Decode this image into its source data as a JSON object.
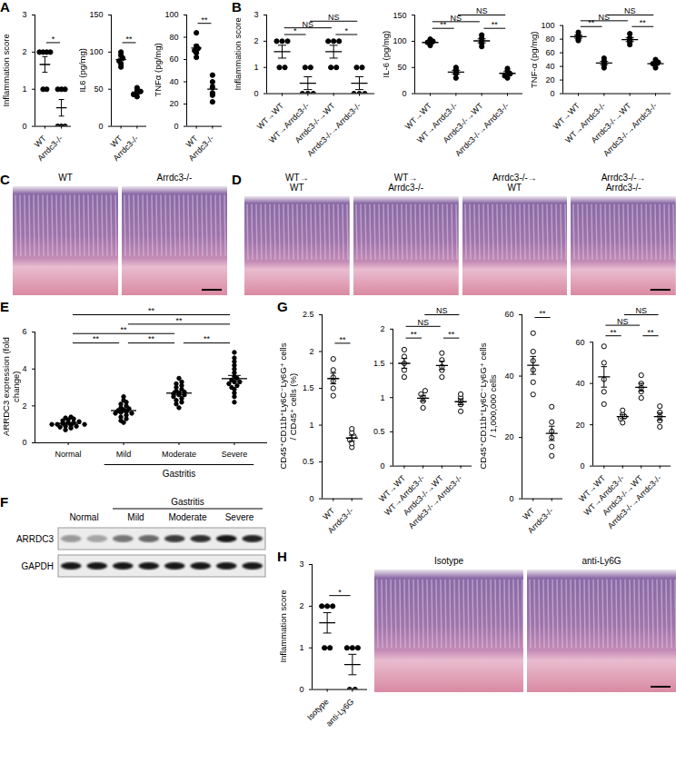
{
  "chart_data": [
    {
      "type": "scatter",
      "panel": "A",
      "y_label": "Inflammation score",
      "categories": [
        "WT",
        "Arrdc3-/-"
      ],
      "values": [
        [
          2,
          2,
          2,
          2,
          1,
          1
        ],
        [
          1,
          1,
          1,
          0,
          0,
          0
        ]
      ],
      "ylim": [
        0,
        3
      ],
      "yticks": [
        0,
        1,
        2,
        3
      ],
      "marker": "circle",
      "color": "#000000",
      "comparisons": [
        {
          "groups": [
            0,
            1
          ],
          "label": "*"
        }
      ]
    },
    {
      "type": "scatter",
      "y_label": "IL6 (pg/mg)",
      "categories": [
        "WT",
        "Arrdc3-/-"
      ],
      "values": [
        [
          80,
          84,
          88,
          92,
          96,
          100
        ],
        [
          40,
          43,
          45,
          47,
          49,
          52
        ]
      ],
      "ylim": [
        0,
        150
      ],
      "yticks": [
        0,
        50,
        100,
        150
      ],
      "marker": "circle",
      "color": "#000000",
      "comparisons": [
        {
          "groups": [
            0,
            1
          ],
          "label": "**"
        }
      ]
    },
    {
      "type": "scatter",
      "y_label": "TNFα (pg/mg)",
      "categories": [
        "WT",
        "Arrdc3-/-"
      ],
      "values": [
        [
          62,
          66,
          68,
          70,
          72,
          84
        ],
        [
          22,
          28,
          30,
          35,
          40,
          46
        ]
      ],
      "ylim": [
        0,
        100
      ],
      "yticks": [
        0,
        20,
        40,
        60,
        80,
        100
      ],
      "marker": "circle",
      "color": "#000000",
      "comparisons": [
        {
          "groups": [
            0,
            1
          ],
          "label": "**"
        }
      ]
    },
    {
      "type": "scatter",
      "panel": "B",
      "y_label": "Inflammation score",
      "categories": [
        "WT→WT",
        "WT→Arrdc3-/-",
        "Arrdc3-/-→WT",
        "Arrdc3-/-→Arrdc3-/-"
      ],
      "values": [
        [
          2,
          2,
          2,
          1,
          1
        ],
        [
          1,
          1,
          0,
          0,
          0
        ],
        [
          2,
          2,
          2,
          1,
          1
        ],
        [
          1,
          1,
          0,
          0,
          0
        ]
      ],
      "ylim": [
        0,
        3
      ],
      "yticks": [
        0,
        1,
        2,
        3
      ],
      "marker": "circle",
      "color": "#000000",
      "comparisons": [
        {
          "groups": [
            0,
            1
          ],
          "label": "*"
        },
        {
          "groups": [
            2,
            3
          ],
          "label": "*"
        },
        {
          "groups": [
            0,
            2
          ],
          "label": "NS"
        },
        {
          "groups": [
            1,
            3
          ],
          "label": "NS"
        }
      ]
    },
    {
      "type": "scatter",
      "y_label": "IL-6 (pg/mg)",
      "categories": [
        "WT→WT",
        "WT→Arrdc3-/-",
        "Arrdc3-/-→WT",
        "Arrdc3-/-→Arrdc3-/-"
      ],
      "values": [
        [
          92,
          95,
          98,
          100,
          104
        ],
        [
          30,
          38,
          42,
          46,
          50
        ],
        [
          90,
          96,
          100,
          106,
          112
        ],
        [
          30,
          34,
          38,
          44,
          48
        ]
      ],
      "ylim": [
        0,
        150
      ],
      "yticks": [
        0,
        50,
        100,
        150
      ],
      "marker": "circle",
      "color": "#000000",
      "comparisons": [
        {
          "groups": [
            0,
            1
          ],
          "label": "**"
        },
        {
          "groups": [
            2,
            3
          ],
          "label": "**"
        },
        {
          "groups": [
            0,
            2
          ],
          "label": "NS"
        },
        {
          "groups": [
            1,
            3
          ],
          "label": "NS"
        }
      ]
    },
    {
      "type": "scatter",
      "y_label": "TNF-α (pg/mg)",
      "categories": [
        "WT→WT",
        "WT→Arrdc3-/-",
        "Arrdc3-/-→WT",
        "Arrdc3-/-→Arrdc3-/-"
      ],
      "values": [
        [
          78,
          80,
          84,
          86,
          90
        ],
        [
          38,
          42,
          45,
          48,
          52
        ],
        [
          72,
          76,
          78,
          82,
          88
        ],
        [
          38,
          42,
          44,
          46,
          50
        ]
      ],
      "ylim": [
        0,
        100
      ],
      "yticks": [
        0,
        20,
        40,
        60,
        80,
        100
      ],
      "marker": "circle",
      "color": "#000000",
      "comparisons": [
        {
          "groups": [
            0,
            1
          ],
          "label": "**"
        },
        {
          "groups": [
            2,
            3
          ],
          "label": "**"
        },
        {
          "groups": [
            0,
            2
          ],
          "label": "NS"
        },
        {
          "groups": [
            1,
            3
          ],
          "label": "NS"
        }
      ]
    },
    {
      "type": "scatter",
      "panel": "E",
      "y_label": "ARRDC3 expression (fold change)",
      "categories": [
        "Normal",
        "Mild",
        "Moderate",
        "Severe"
      ],
      "group_labels": [
        {
          "label": "Gastritis",
          "from": 1,
          "to": 3
        }
      ],
      "values": [
        [
          0.7,
          0.8,
          0.85,
          0.9,
          0.95,
          1.0,
          1.0,
          1.05,
          1.1,
          1.1,
          1.15,
          1.2,
          1.25,
          1.3,
          1.35,
          1.4,
          0.9,
          1.0
        ],
        [
          1.1,
          1.2,
          1.3,
          1.4,
          1.5,
          1.6,
          1.65,
          1.7,
          1.75,
          1.8,
          1.85,
          1.9,
          2.0,
          2.1,
          2.2,
          2.3,
          2.5,
          1.6
        ],
        [
          1.9,
          2.1,
          2.2,
          2.3,
          2.4,
          2.5,
          2.6,
          2.65,
          2.7,
          2.75,
          2.8,
          2.9,
          3.0,
          3.1,
          3.2,
          3.3,
          3.5,
          2.6
        ],
        [
          2.2,
          2.5,
          2.7,
          2.9,
          3.0,
          3.1,
          3.2,
          3.3,
          3.4,
          3.5,
          3.6,
          3.8,
          4.0,
          4.2,
          4.4,
          4.6,
          4.9,
          3.3
        ]
      ],
      "ylim": [
        0,
        6
      ],
      "yticks": [
        0,
        2,
        4,
        6
      ],
      "marker": "circle",
      "color": "#000000",
      "comparisons": [
        {
          "groups": [
            0,
            1
          ],
          "label": "**"
        },
        {
          "groups": [
            1,
            2
          ],
          "label": "**"
        },
        {
          "groups": [
            2,
            3
          ],
          "label": "**"
        },
        {
          "groups": [
            0,
            2
          ],
          "label": "**"
        },
        {
          "groups": [
            1,
            3
          ],
          "label": "**"
        },
        {
          "groups": [
            0,
            3
          ],
          "label": "**"
        }
      ]
    },
    {
      "type": "scatter",
      "panel": "G",
      "y_label": [
        "CD45⁺CD11b⁺Ly6C⁻Ly6G⁺ cells",
        "/ CD45⁺ cells (%)"
      ],
      "categories": [
        "WT",
        "Arrdc3-/-"
      ],
      "values": [
        [
          1.4,
          1.5,
          1.6,
          1.65,
          1.75,
          1.9
        ],
        [
          0.7,
          0.75,
          0.8,
          0.85,
          0.9,
          0.95
        ]
      ],
      "ylim": [
        0,
        2.5
      ],
      "yticks": [
        0,
        0.5,
        1,
        1.5,
        2,
        2.5
      ],
      "marker": "open_circle",
      "color": "#000000",
      "comparisons": [
        {
          "groups": [
            0,
            1
          ],
          "label": "**"
        }
      ]
    },
    {
      "type": "scatter",
      "categories": [
        "WT→WT",
        "WT→Arrdc3-/-",
        "Arrdc3-/-→WT",
        "Arrdc3-/-→Arrdc3-/-"
      ],
      "values": [
        [
          1.3,
          1.4,
          1.5,
          1.6,
          1.7
        ],
        [
          0.85,
          0.95,
          1.0,
          1.05,
          1.1
        ],
        [
          1.3,
          1.4,
          1.45,
          1.55,
          1.65
        ],
        [
          0.8,
          0.9,
          0.95,
          1.0,
          1.05
        ]
      ],
      "ylim": [
        0,
        2
      ],
      "yticks": [
        0,
        0.5,
        1,
        1.5,
        2
      ],
      "marker": "open_circle",
      "color": "#000000",
      "comparisons": [
        {
          "groups": [
            0,
            1
          ],
          "label": "**"
        },
        {
          "groups": [
            2,
            3
          ],
          "label": "**"
        },
        {
          "groups": [
            0,
            2
          ],
          "label": "NS"
        },
        {
          "groups": [
            1,
            3
          ],
          "label": "NS"
        }
      ]
    },
    {
      "type": "scatter",
      "y_label": [
        "CD45⁺CD11b⁺Ly6C⁻Ly6G⁺ cells",
        "/ 1,000,000 cells"
      ],
      "categories": [
        "WT",
        "Arrdc3-/-"
      ],
      "values": [
        [
          34,
          38,
          42,
          45,
          48,
          54
        ],
        [
          14,
          17,
          20,
          22,
          25,
          30
        ]
      ],
      "ylim": [
        0,
        60
      ],
      "yticks": [
        0,
        20,
        40,
        60
      ],
      "marker": "open_circle",
      "color": "#000000",
      "comparisons": [
        {
          "groups": [
            0,
            1
          ],
          "label": "**"
        }
      ]
    },
    {
      "type": "scatter",
      "categories": [
        "WT→WT",
        "WT→Arrdc3-/-",
        "Arrdc3-/-→WT",
        "Arrdc3-/-→Arrdc3-/-"
      ],
      "values": [
        [
          30,
          36,
          42,
          50,
          58
        ],
        [
          21,
          23,
          24,
          25,
          27
        ],
        [
          33,
          36,
          38,
          40,
          44
        ],
        [
          19,
          22,
          24,
          26,
          29
        ]
      ],
      "ylim": [
        0,
        60
      ],
      "yticks": [
        0,
        20,
        40,
        60
      ],
      "marker": "open_circle",
      "color": "#000000",
      "comparisons": [
        {
          "groups": [
            0,
            1
          ],
          "label": "**"
        },
        {
          "groups": [
            2,
            3
          ],
          "label": "**"
        },
        {
          "groups": [
            0,
            2
          ],
          "label": "NS"
        },
        {
          "groups": [
            1,
            3
          ],
          "label": "NS"
        }
      ]
    },
    {
      "type": "scatter",
      "panel": "H",
      "y_label": "Inflammation score",
      "categories": [
        "Isotype",
        "anti-Ly6G"
      ],
      "values": [
        [
          2,
          2,
          2,
          1,
          1
        ],
        [
          1,
          1,
          1,
          0,
          0
        ]
      ],
      "ylim": [
        0,
        3
      ],
      "yticks": [
        0,
        1,
        2,
        3
      ],
      "marker": "circle",
      "color": "#000000",
      "comparisons": [
        {
          "groups": [
            0,
            1
          ],
          "label": "*"
        }
      ]
    }
  ],
  "images": [
    {
      "panel": "C",
      "labels": [
        [
          "WT"
        ],
        [
          "Arrdc3-/-"
        ]
      ]
    },
    {
      "panel": "D",
      "labels": [
        [
          "WT→",
          "WT"
        ],
        [
          "WT→",
          "Arrdc3-/-"
        ],
        [
          "Arrdc3-/-→",
          "WT"
        ],
        [
          "Arrdc3-/-→",
          "Arrdc3-/-"
        ]
      ]
    },
    {
      "labels": [
        [
          "Isotype"
        ],
        [
          "anti-Ly6G"
        ]
      ]
    }
  ],
  "blot": {
    "panel": "F",
    "groups": [
      {
        "label": "Normal",
        "lanes": 2
      },
      {
        "label": "Mild",
        "lanes": 2
      },
      {
        "label": "Moderate",
        "lanes": 2
      },
      {
        "label": "Severe",
        "lanes": 2
      }
    ],
    "supergroup": {
      "label": "Gastritis",
      "from": 1,
      "to": 3
    },
    "rows": [
      {
        "label": "ARRDC3",
        "intensity": [
          0.35,
          0.3,
          0.5,
          0.55,
          0.75,
          0.8,
          0.9,
          0.85
        ]
      },
      {
        "label": "GAPDH",
        "intensity": [
          0.9,
          0.9,
          0.9,
          0.9,
          0.9,
          0.9,
          0.9,
          0.9
        ]
      }
    ]
  }
}
